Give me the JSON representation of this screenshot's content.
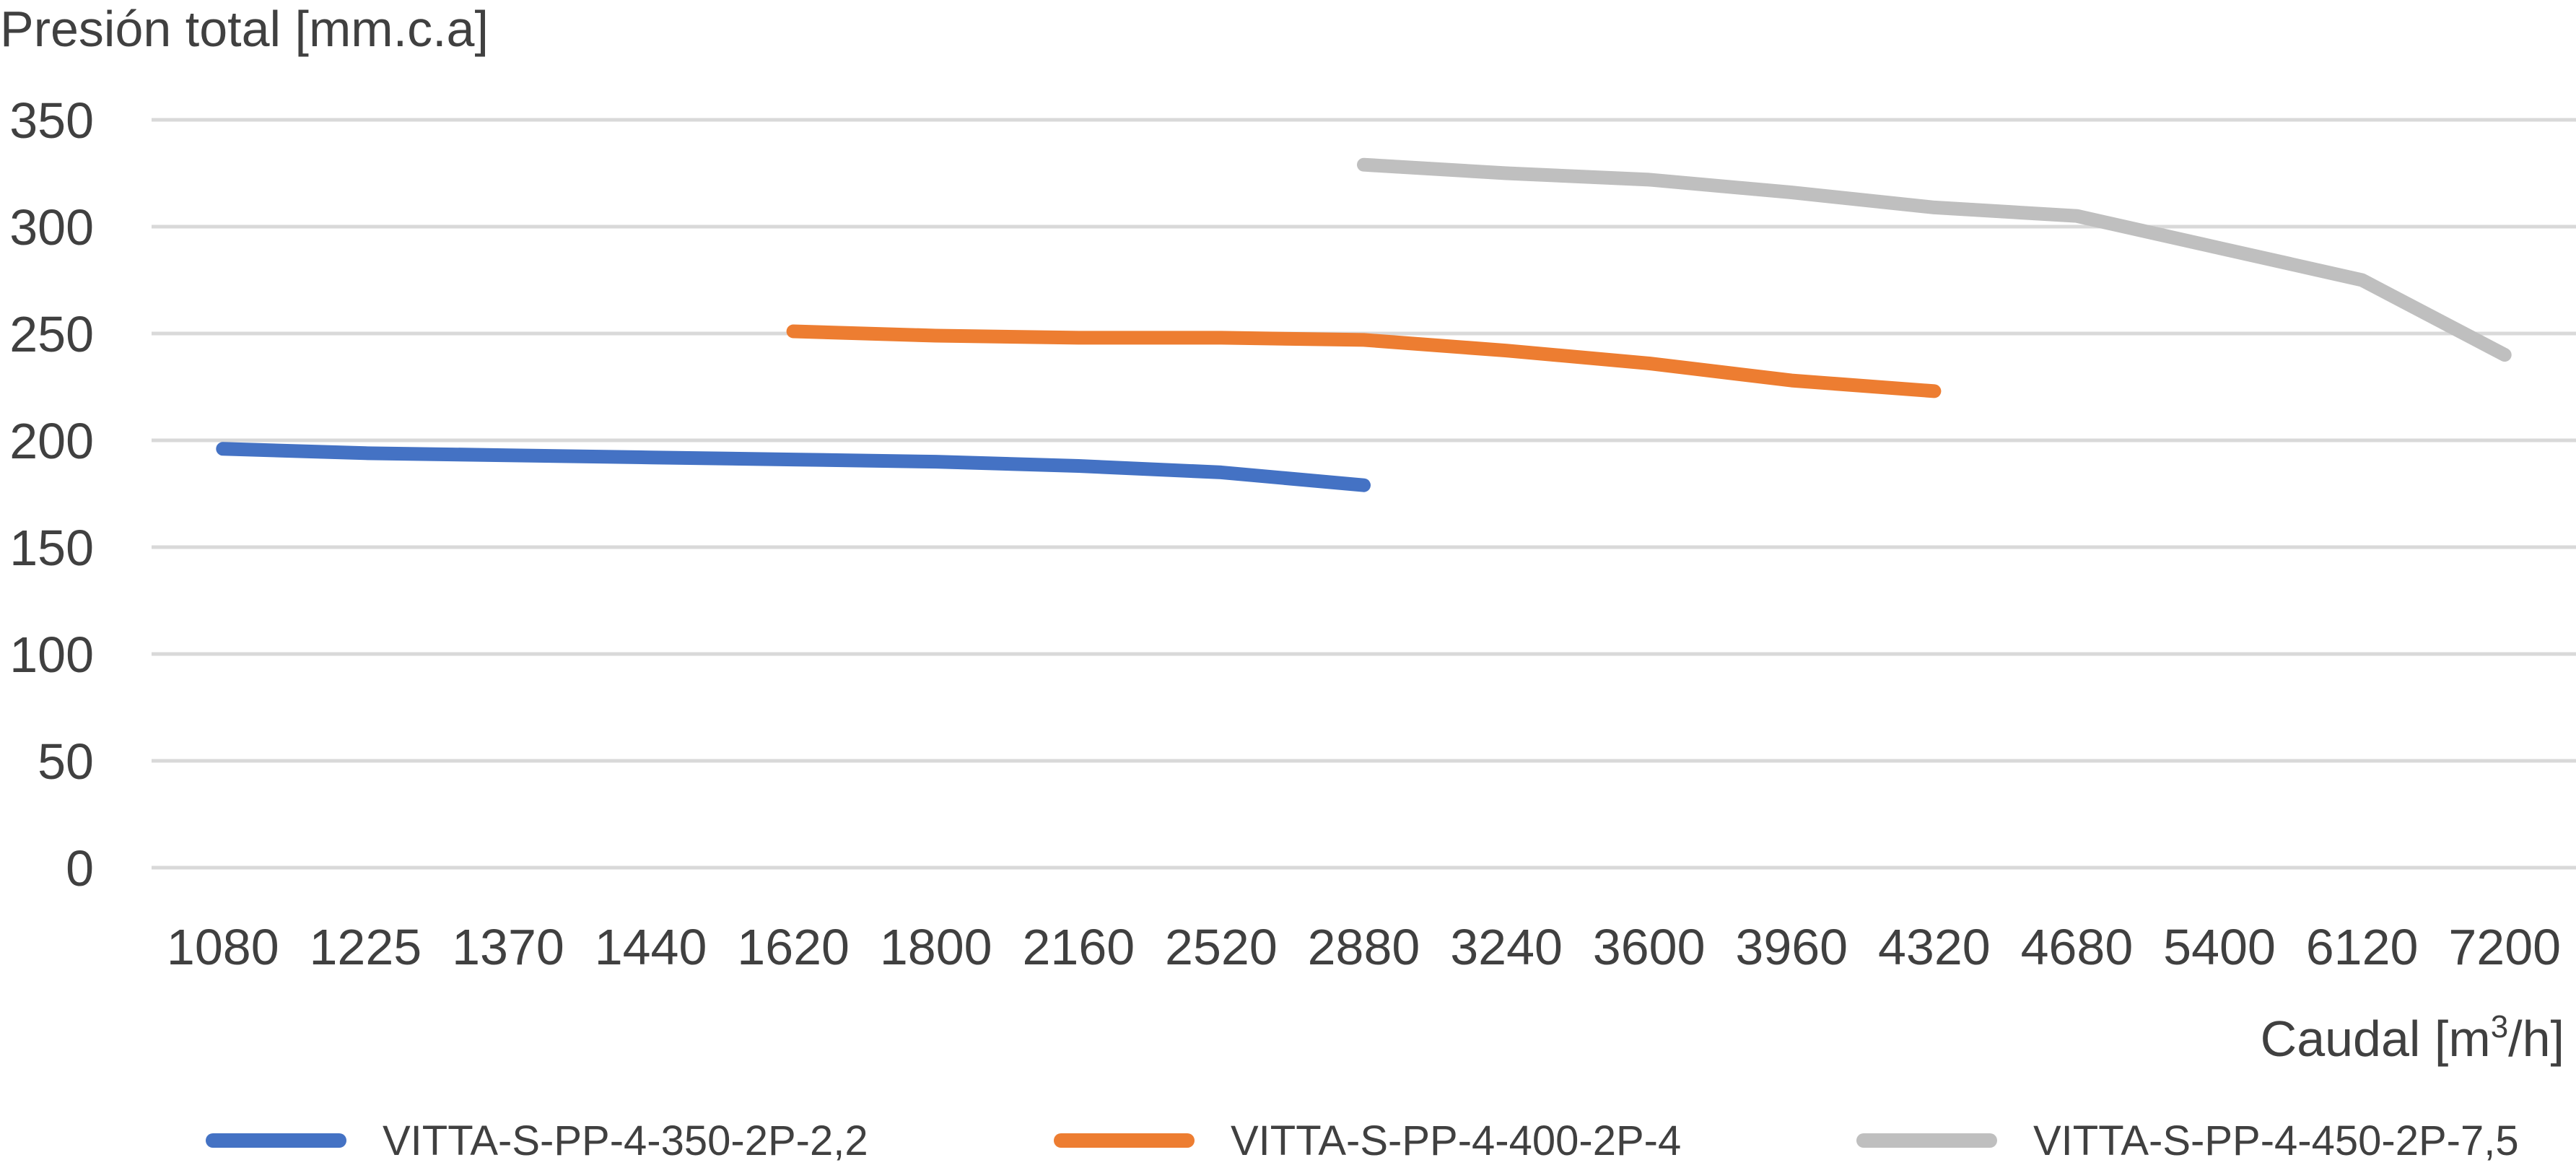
{
  "chart_data": {
    "type": "line",
    "ylabel": "Presión total [mm.c.a]",
    "xlabel_main": "Caudal [m",
    "xlabel_sup": "3",
    "xlabel_tail": "/h]",
    "categories": [
      "1080",
      "1225",
      "1370",
      "1440",
      "1620",
      "1800",
      "2160",
      "2520",
      "2880",
      "3240",
      "3600",
      "3960",
      "4320",
      "4680",
      "5400",
      "6120",
      "7200"
    ],
    "y_ticks": [
      "0",
      "50",
      "100",
      "150",
      "200",
      "250",
      "300",
      "350"
    ],
    "ylim": [
      0,
      350
    ],
    "grid": true,
    "legend_position": "bottom",
    "series": [
      {
        "name": "VITTA-S-PP-4-350-2P-2,2",
        "color": "#4472c4",
        "values": [
          196,
          194,
          193,
          192,
          191,
          190,
          188,
          185,
          179,
          null,
          null,
          null,
          null,
          null,
          null,
          null,
          null
        ]
      },
      {
        "name": "VITTA-S-PP-4-400-2P-4",
        "color": "#ed7d31",
        "values": [
          null,
          null,
          null,
          null,
          251,
          249,
          248,
          248,
          247,
          242,
          236,
          228,
          223,
          null,
          null,
          null,
          null
        ]
      },
      {
        "name": "VITTA-S-PP-4-450-2P-7,5",
        "color": "#bfbfbf",
        "values": [
          null,
          null,
          null,
          null,
          null,
          null,
          null,
          null,
          329,
          325,
          322,
          316,
          309,
          305,
          290,
          275,
          240
        ]
      }
    ]
  }
}
